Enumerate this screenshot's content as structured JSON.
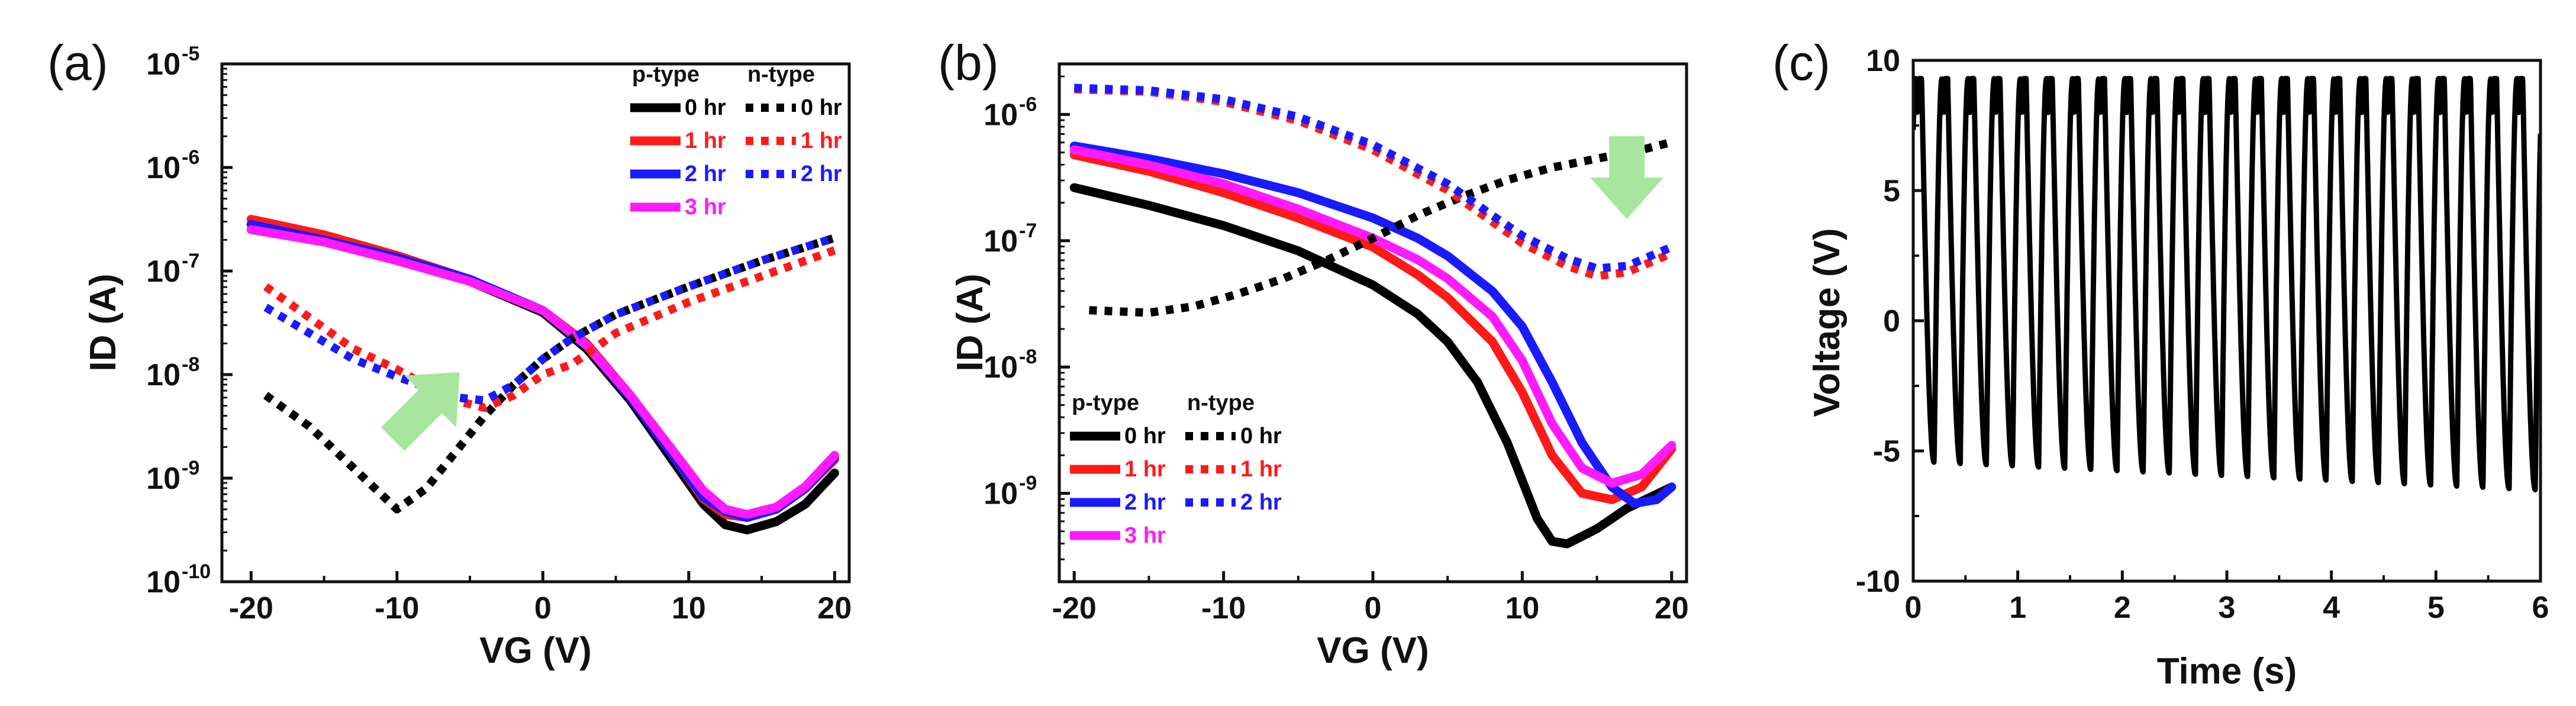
{
  "colors": {
    "0 hr": "#000000",
    "1 hr": "#ff1a1a",
    "2 hr": "#1a1aff",
    "3 hr": "#ff1aff",
    "arrow": "#a8e6a0"
  },
  "chart_data": [
    {
      "id": "a",
      "panel_label": "(a)",
      "type": "line",
      "xlabel": "VG (V)",
      "ylabel": "ID (A)",
      "yscale": "log",
      "xlim": [
        -22,
        21
      ],
      "ylim_log10": [
        -10,
        -5
      ],
      "xticks": [
        -20,
        -10,
        0,
        10,
        20
      ],
      "xtick_labels": [
        "-20",
        "-10",
        "0",
        "10",
        "20"
      ],
      "yticks_log10": [
        -10,
        -9,
        -8,
        -7,
        -6,
        -5
      ],
      "ytick_labels": [
        {
          "base": "10",
          "exp": "-10"
        },
        {
          "base": "10",
          "exp": "-9"
        },
        {
          "base": "10",
          "exp": "-8"
        },
        {
          "base": "10",
          "exp": "-7"
        },
        {
          "base": "10",
          "exp": "-6"
        },
        {
          "base": "10",
          "exp": "-5"
        }
      ],
      "legend": {
        "position": "top-right",
        "headers": [
          "p-type",
          "n-type"
        ],
        "p_labels": [
          "0 hr",
          "1 hr",
          "2 hr",
          "3 hr"
        ],
        "n_labels": [
          "0 hr",
          "1 hr",
          "2 hr"
        ]
      },
      "annotation": {
        "kind": "arrow",
        "direction": "up-right",
        "x": -8,
        "y_log10": -8.3
      },
      "series": [
        {
          "name": "p-type 0 hr",
          "style": "solid",
          "color_key": "0 hr",
          "points": [
            [
              -20,
              -6.55
            ],
            [
              -15,
              -6.7
            ],
            [
              -10,
              -6.88
            ],
            [
              -5,
              -7.1
            ],
            [
              0,
              -7.4
            ],
            [
              3,
              -7.75
            ],
            [
              6,
              -8.25
            ],
            [
              9,
              -8.85
            ],
            [
              11,
              -9.25
            ],
            [
              12.5,
              -9.45
            ],
            [
              14,
              -9.5
            ],
            [
              16,
              -9.42
            ],
            [
              18,
              -9.25
            ],
            [
              20,
              -8.95
            ]
          ]
        },
        {
          "name": "p-type 1 hr",
          "style": "solid",
          "color_key": "1 hr",
          "points": [
            [
              -20,
              -6.5
            ],
            [
              -15,
              -6.65
            ],
            [
              -10,
              -6.85
            ],
            [
              -5,
              -7.08
            ],
            [
              0,
              -7.38
            ],
            [
              3,
              -7.7
            ],
            [
              6,
              -8.2
            ],
            [
              9,
              -8.8
            ],
            [
              11,
              -9.2
            ],
            [
              12.5,
              -9.35
            ],
            [
              14,
              -9.38
            ],
            [
              16,
              -9.3
            ],
            [
              18,
              -9.1
            ],
            [
              20,
              -8.82
            ]
          ]
        },
        {
          "name": "p-type 2 hr",
          "style": "solid",
          "color_key": "2 hr",
          "points": [
            [
              -20,
              -6.55
            ],
            [
              -15,
              -6.7
            ],
            [
              -10,
              -6.87
            ],
            [
              -5,
              -7.08
            ],
            [
              0,
              -7.38
            ],
            [
              3,
              -7.72
            ],
            [
              6,
              -8.22
            ],
            [
              9,
              -8.8
            ],
            [
              11,
              -9.18
            ],
            [
              12.5,
              -9.32
            ],
            [
              14,
              -9.38
            ],
            [
              16,
              -9.3
            ],
            [
              18,
              -9.1
            ],
            [
              20,
              -8.8
            ]
          ]
        },
        {
          "name": "p-type 3 hr",
          "style": "solid",
          "color_key": "3 hr",
          "points": [
            [
              -20,
              -6.6
            ],
            [
              -15,
              -6.72
            ],
            [
              -10,
              -6.9
            ],
            [
              -5,
              -7.1
            ],
            [
              0,
              -7.38
            ],
            [
              3,
              -7.72
            ],
            [
              6,
              -8.2
            ],
            [
              9,
              -8.75
            ],
            [
              11,
              -9.12
            ],
            [
              12.5,
              -9.3
            ],
            [
              14,
              -9.35
            ],
            [
              16,
              -9.28
            ],
            [
              18,
              -9.08
            ],
            [
              20,
              -8.78
            ]
          ]
        },
        {
          "name": "n-type 0 hr",
          "style": "dotted",
          "color_key": "0 hr",
          "points": [
            [
              -19,
              -8.2
            ],
            [
              -16,
              -8.5
            ],
            [
              -13,
              -8.9
            ],
            [
              -10,
              -9.3
            ],
            [
              -8,
              -9.1
            ],
            [
              -6,
              -8.75
            ],
            [
              -4,
              -8.4
            ],
            [
              -2,
              -8.1
            ],
            [
              0,
              -7.85
            ],
            [
              2,
              -7.65
            ],
            [
              5,
              -7.42
            ],
            [
              10,
              -7.15
            ],
            [
              15,
              -6.9
            ],
            [
              20,
              -6.68
            ]
          ]
        },
        {
          "name": "n-type 1 hr",
          "style": "dotted",
          "color_key": "1 hr",
          "points": [
            [
              -19,
              -7.15
            ],
            [
              -16,
              -7.45
            ],
            [
              -13,
              -7.75
            ],
            [
              -10,
              -7.95
            ],
            [
              -8,
              -8.1
            ],
            [
              -6,
              -8.25
            ],
            [
              -4,
              -8.32
            ],
            [
              -2,
              -8.2
            ],
            [
              0,
              -8.0
            ],
            [
              2,
              -7.9
            ],
            [
              5,
              -7.6
            ],
            [
              10,
              -7.3
            ],
            [
              15,
              -7.05
            ],
            [
              20,
              -6.8
            ]
          ]
        },
        {
          "name": "n-type 2 hr",
          "style": "dotted",
          "color_key": "2 hr",
          "points": [
            [
              -19,
              -7.35
            ],
            [
              -16,
              -7.6
            ],
            [
              -13,
              -7.85
            ],
            [
              -10,
              -8.02
            ],
            [
              -8,
              -8.12
            ],
            [
              -6,
              -8.22
            ],
            [
              -4,
              -8.25
            ],
            [
              -2,
              -8.1
            ],
            [
              0,
              -7.85
            ],
            [
              2,
              -7.65
            ],
            [
              5,
              -7.42
            ],
            [
              10,
              -7.15
            ],
            [
              15,
              -6.9
            ],
            [
              20,
              -6.68
            ]
          ]
        }
      ]
    },
    {
      "id": "b",
      "panel_label": "(b)",
      "type": "line",
      "xlabel": "VG (V)",
      "ylabel": "ID (A)",
      "yscale": "log",
      "xlim": [
        -21,
        21
      ],
      "ylim_log10": [
        -9.7,
        -5.6
      ],
      "xticks": [
        -20,
        -10,
        0,
        10,
        20
      ],
      "xtick_labels": [
        "-20",
        "-10",
        "0",
        "10",
        "20"
      ],
      "yticks_log10": [
        -9,
        -8,
        -7,
        -6
      ],
      "ytick_labels": [
        {
          "base": "10",
          "exp": "-9"
        },
        {
          "base": "10",
          "exp": "-8"
        },
        {
          "base": "10",
          "exp": "-7"
        },
        {
          "base": "10",
          "exp": "-6"
        }
      ],
      "legend": {
        "position": "bottom-left",
        "headers": [
          "p-type",
          "n-type"
        ],
        "p_labels": [
          "0 hr",
          "1 hr",
          "2 hr",
          "3 hr"
        ],
        "n_labels": [
          "0 hr",
          "1 hr",
          "2 hr"
        ]
      },
      "annotation": {
        "kind": "arrow",
        "direction": "down",
        "x": 17,
        "y_log10": -6.5
      },
      "series": [
        {
          "name": "p-type 0 hr",
          "style": "solid",
          "color_key": "0 hr",
          "points": [
            [
              -20,
              -6.58
            ],
            [
              -15,
              -6.72
            ],
            [
              -10,
              -6.88
            ],
            [
              -5,
              -7.08
            ],
            [
              0,
              -7.35
            ],
            [
              3,
              -7.58
            ],
            [
              5,
              -7.8
            ],
            [
              7,
              -8.12
            ],
            [
              9,
              -8.6
            ],
            [
              11,
              -9.2
            ],
            [
              12,
              -9.38
            ],
            [
              13,
              -9.4
            ],
            [
              15,
              -9.28
            ],
            [
              17,
              -9.12
            ],
            [
              20,
              -8.95
            ]
          ]
        },
        {
          "name": "p-type 1 hr",
          "style": "solid",
          "color_key": "1 hr",
          "points": [
            [
              -20,
              -6.32
            ],
            [
              -15,
              -6.45
            ],
            [
              -10,
              -6.62
            ],
            [
              -5,
              -6.82
            ],
            [
              0,
              -7.05
            ],
            [
              3,
              -7.27
            ],
            [
              5,
              -7.45
            ],
            [
              8,
              -7.8
            ],
            [
              10,
              -8.2
            ],
            [
              12,
              -8.7
            ],
            [
              14,
              -9.0
            ],
            [
              16,
              -9.05
            ],
            [
              18,
              -8.95
            ],
            [
              20,
              -8.65
            ]
          ]
        },
        {
          "name": "p-type 2 hr",
          "style": "solid",
          "color_key": "2 hr",
          "points": [
            [
              -20,
              -6.25
            ],
            [
              -15,
              -6.35
            ],
            [
              -10,
              -6.47
            ],
            [
              -5,
              -6.62
            ],
            [
              0,
              -6.82
            ],
            [
              3,
              -6.98
            ],
            [
              5,
              -7.12
            ],
            [
              8,
              -7.4
            ],
            [
              10,
              -7.68
            ],
            [
              12,
              -8.12
            ],
            [
              14,
              -8.6
            ],
            [
              16,
              -8.95
            ],
            [
              17.5,
              -9.08
            ],
            [
              19,
              -9.05
            ],
            [
              20,
              -8.95
            ]
          ]
        },
        {
          "name": "p-type 3 hr",
          "style": "solid",
          "color_key": "3 hr",
          "points": [
            [
              -20,
              -6.28
            ],
            [
              -15,
              -6.4
            ],
            [
              -10,
              -6.55
            ],
            [
              -5,
              -6.75
            ],
            [
              0,
              -6.98
            ],
            [
              3,
              -7.15
            ],
            [
              5,
              -7.3
            ],
            [
              8,
              -7.6
            ],
            [
              10,
              -7.95
            ],
            [
              12,
              -8.45
            ],
            [
              14,
              -8.8
            ],
            [
              16,
              -8.92
            ],
            [
              18,
              -8.85
            ],
            [
              20,
              -8.62
            ]
          ]
        },
        {
          "name": "n-type 0 hr",
          "style": "dotted",
          "color_key": "0 hr",
          "points": [
            [
              -19,
              -7.55
            ],
            [
              -15,
              -7.57
            ],
            [
              -12,
              -7.52
            ],
            [
              -9,
              -7.42
            ],
            [
              -6,
              -7.3
            ],
            [
              -3,
              -7.15
            ],
            [
              0,
              -6.98
            ],
            [
              3,
              -6.8
            ],
            [
              6,
              -6.65
            ],
            [
              9,
              -6.52
            ],
            [
              12,
              -6.42
            ],
            [
              15,
              -6.35
            ],
            [
              18,
              -6.28
            ],
            [
              20,
              -6.22
            ]
          ]
        },
        {
          "name": "n-type 1 hr",
          "style": "dotted",
          "color_key": "1 hr",
          "points": [
            [
              -20,
              -5.8
            ],
            [
              -15,
              -5.82
            ],
            [
              -10,
              -5.9
            ],
            [
              -5,
              -6.05
            ],
            [
              0,
              -6.28
            ],
            [
              5,
              -6.6
            ],
            [
              8,
              -6.85
            ],
            [
              10,
              -7.02
            ],
            [
              13,
              -7.2
            ],
            [
              15,
              -7.28
            ],
            [
              17,
              -7.25
            ],
            [
              19,
              -7.15
            ],
            [
              20,
              -7.1
            ]
          ]
        },
        {
          "name": "n-type 2 hr",
          "style": "dotted",
          "color_key": "2 hr",
          "points": [
            [
              -20,
              -5.79
            ],
            [
              -15,
              -5.81
            ],
            [
              -10,
              -5.88
            ],
            [
              -5,
              -6.02
            ],
            [
              0,
              -6.24
            ],
            [
              5,
              -6.55
            ],
            [
              8,
              -6.8
            ],
            [
              10,
              -6.96
            ],
            [
              13,
              -7.14
            ],
            [
              15,
              -7.22
            ],
            [
              17,
              -7.2
            ],
            [
              19,
              -7.1
            ],
            [
              20,
              -7.05
            ]
          ]
        }
      ]
    },
    {
      "id": "c",
      "panel_label": "(c)",
      "type": "line",
      "xlabel": "Time (s)",
      "ylabel": "Voltage (V)",
      "xlim": [
        0,
        6
      ],
      "ylim": [
        -10,
        10
      ],
      "xticks": [
        0,
        1,
        2,
        3,
        4,
        5,
        6
      ],
      "xtick_labels": [
        "0",
        "1",
        "2",
        "3",
        "4",
        "5",
        "6"
      ],
      "yticks": [
        -10,
        -5,
        0,
        5,
        10
      ],
      "ytick_labels": [
        "-10",
        "-5",
        "0",
        "5",
        "10"
      ],
      "signal": {
        "cycles": 24,
        "period_s": 0.25,
        "phase_s": -0.05,
        "high_v": 9.3,
        "shoulder_v": 8.0,
        "low_v_start": -5.4,
        "low_v_end": -6.5,
        "color_key": "0 hr"
      }
    }
  ]
}
